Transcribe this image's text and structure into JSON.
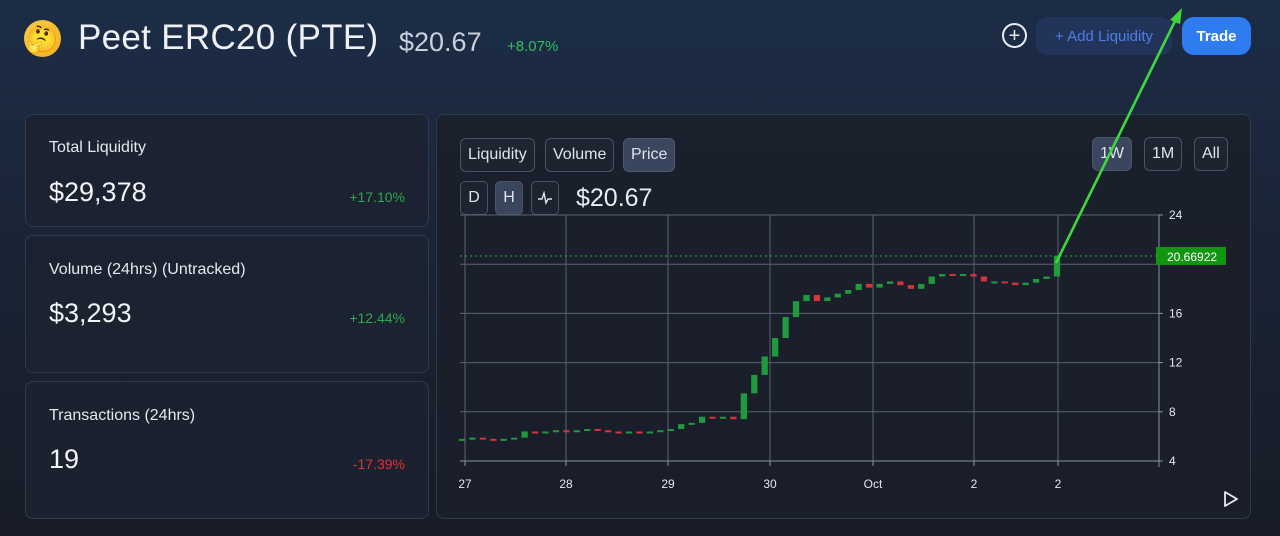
{
  "header": {
    "token_name": "Peet ERC20 (PTE)",
    "price": "$20.67",
    "change": "+8.07%",
    "add_liquidity_label": "+ Add Liquidity",
    "trade_label": "Trade"
  },
  "stats": [
    {
      "label": "Total Liquidity",
      "value": "$29,378",
      "change": "+17.10%",
      "trend": "up"
    },
    {
      "label": "Volume (24hrs) (Untracked)",
      "value": "$3,293",
      "change": "+12.44%",
      "trend": "up"
    },
    {
      "label": "Transactions (24hrs)",
      "value": "19",
      "change": "-17.39%",
      "trend": "down"
    }
  ],
  "chart_panel": {
    "tabs": [
      "Liquidity",
      "Volume",
      "Price"
    ],
    "active_tab": "Price",
    "intervals": [
      "D",
      "H"
    ],
    "active_interval": "H",
    "current_price": "$20.67",
    "ranges": [
      "1W",
      "1M",
      "All"
    ],
    "active_range": "1W"
  },
  "colors": {
    "up": "#1f9a3c",
    "down": "#d8333b",
    "price_tag_bg": "#129612",
    "annotation_arrow": "#3ed83e",
    "accent": "#2f7cf0"
  },
  "chart_data": {
    "type": "candlestick",
    "x_tick_labels": [
      "27",
      "28",
      "29",
      "30",
      "Oct",
      "2",
      "2"
    ],
    "y_ticks": [
      4,
      8,
      12,
      16,
      20,
      24
    ],
    "y_tick_labels": [
      "4",
      "8",
      "12",
      "16",
      "",
      "24"
    ],
    "ylim": [
      4,
      24
    ],
    "last_price_label": "20.66922",
    "last_price": 20.66922,
    "grid": true,
    "candles": [
      {
        "o": 5.7,
        "c": 5.8
      },
      {
        "o": 5.8,
        "c": 5.9
      },
      {
        "o": 5.9,
        "c": 5.8
      },
      {
        "o": 5.8,
        "c": 5.7
      },
      {
        "o": 5.7,
        "c": 5.8
      },
      {
        "o": 5.8,
        "c": 5.9
      },
      {
        "o": 5.9,
        "c": 6.4
      },
      {
        "o": 6.4,
        "c": 6.3
      },
      {
        "o": 6.3,
        "c": 6.4
      },
      {
        "o": 6.4,
        "c": 6.5
      },
      {
        "o": 6.5,
        "c": 6.4
      },
      {
        "o": 6.4,
        "c": 6.5
      },
      {
        "o": 6.5,
        "c": 6.6
      },
      {
        "o": 6.6,
        "c": 6.5
      },
      {
        "o": 6.5,
        "c": 6.4
      },
      {
        "o": 6.4,
        "c": 6.3
      },
      {
        "o": 6.3,
        "c": 6.4
      },
      {
        "o": 6.4,
        "c": 6.3
      },
      {
        "o": 6.3,
        "c": 6.4
      },
      {
        "o": 6.4,
        "c": 6.5
      },
      {
        "o": 6.5,
        "c": 6.6
      },
      {
        "o": 6.6,
        "c": 7.0
      },
      {
        "o": 7.0,
        "c": 7.1
      },
      {
        "o": 7.1,
        "c": 7.6
      },
      {
        "o": 7.6,
        "c": 7.5
      },
      {
        "o": 7.5,
        "c": 7.6
      },
      {
        "o": 7.6,
        "c": 7.4
      },
      {
        "o": 7.4,
        "c": 9.5
      },
      {
        "o": 9.5,
        "c": 11.0
      },
      {
        "o": 11.0,
        "c": 12.5
      },
      {
        "o": 12.5,
        "c": 14.0
      },
      {
        "o": 14.0,
        "c": 15.7
      },
      {
        "o": 15.7,
        "c": 17.0
      },
      {
        "o": 17.0,
        "c": 17.5
      },
      {
        "o": 17.5,
        "c": 17.0
      },
      {
        "o": 17.0,
        "c": 17.3
      },
      {
        "o": 17.3,
        "c": 17.6
      },
      {
        "o": 17.6,
        "c": 17.9
      },
      {
        "o": 17.9,
        "c": 18.4
      },
      {
        "o": 18.4,
        "c": 18.1
      },
      {
        "o": 18.1,
        "c": 18.4
      },
      {
        "o": 18.4,
        "c": 18.6
      },
      {
        "o": 18.6,
        "c": 18.3
      },
      {
        "o": 18.3,
        "c": 18.0
      },
      {
        "o": 18.0,
        "c": 18.4
      },
      {
        "o": 18.4,
        "c": 19.0
      },
      {
        "o": 19.0,
        "c": 19.2
      },
      {
        "o": 19.2,
        "c": 19.1
      },
      {
        "o": 19.1,
        "c": 19.2
      },
      {
        "o": 19.2,
        "c": 19.0
      },
      {
        "o": 19.0,
        "c": 18.6
      },
      {
        "o": 18.6,
        "c": 18.6
      },
      {
        "o": 18.6,
        "c": 18.5
      },
      {
        "o": 18.5,
        "c": 18.3
      },
      {
        "o": 18.3,
        "c": 18.5
      },
      {
        "o": 18.5,
        "c": 18.8
      },
      {
        "o": 18.8,
        "c": 19.0
      },
      {
        "o": 19.0,
        "c": 20.67
      }
    ]
  }
}
